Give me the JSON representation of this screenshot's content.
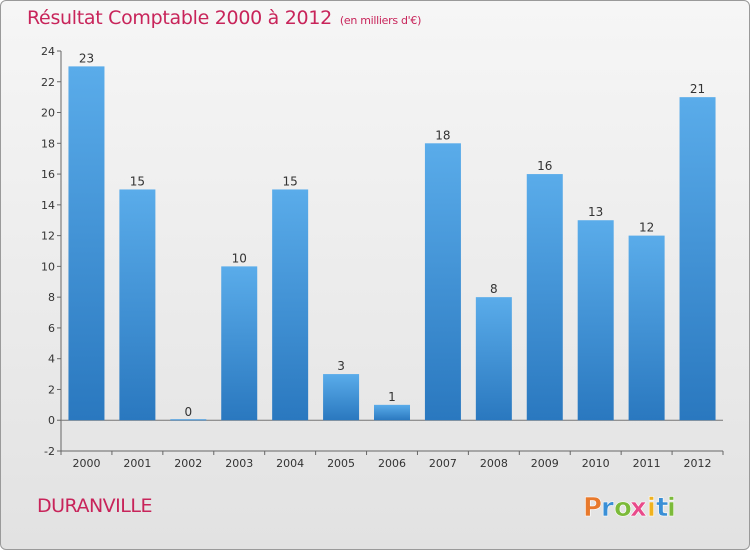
{
  "chart_data": {
    "type": "bar",
    "title": "Résultat Comptable 2000 à 2012",
    "subtitle": "(en milliers d'€)",
    "categories": [
      "2000",
      "2001",
      "2002",
      "2003",
      "2004",
      "2005",
      "2006",
      "2007",
      "2008",
      "2009",
      "2010",
      "2011",
      "2012"
    ],
    "values": [
      23,
      15,
      0,
      10,
      15,
      3,
      1,
      18,
      8,
      16,
      13,
      12,
      21
    ],
    "ylim": [
      -2,
      24
    ],
    "yticks": [
      -2,
      0,
      2,
      4,
      6,
      8,
      10,
      12,
      14,
      16,
      18,
      20,
      22,
      24
    ],
    "grid": false,
    "bar_color": "#3d8ed4",
    "xlabel": "",
    "ylabel": ""
  },
  "place": "DURANVILLE",
  "logo": {
    "letters": [
      "P",
      "r",
      "o",
      "x",
      "i",
      "t",
      "i"
    ],
    "colors": [
      "#e8792c",
      "#3a8fd6",
      "#7cba3a",
      "#e84a8a",
      "#f0b21e",
      "#3a8fd6",
      "#7cba3a"
    ]
  },
  "colors": {
    "accent": "#c8245a",
    "axis": "#555555"
  }
}
